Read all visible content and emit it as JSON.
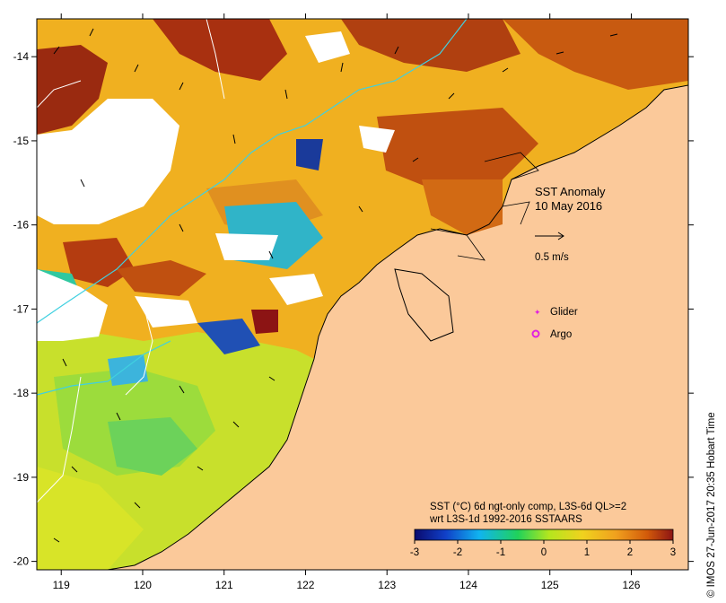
{
  "title": {
    "line1": "SST Anomaly",
    "line2": "10 May 2016"
  },
  "vector_scale": {
    "label": "0.5 m/s"
  },
  "legend": {
    "glider": "Glider",
    "argo": "Argo"
  },
  "colorbar": {
    "caption_line1": "SST (°C) 6d ngt-only comp, L3S-6d QL>=2",
    "caption_line2": "wrt L3S-1d 1992-2016 SSTAARS",
    "ticks": [
      "-3",
      "-2",
      "-1",
      "0",
      "1",
      "2",
      "3"
    ],
    "colors": [
      "#0a0a6e",
      "#1040c8",
      "#10b4f0",
      "#20d25a",
      "#b4e61e",
      "#f0d21e",
      "#f0a01e",
      "#d25a0a",
      "#8c1414"
    ]
  },
  "credit": "© IMOS 27-Jun-2017 20:35 Hobart Time",
  "axes": {
    "x_ticks": [
      "119",
      "120",
      "121",
      "122",
      "123",
      "124",
      "125",
      "126"
    ],
    "y_ticks": [
      "-14",
      "-15",
      "-16",
      "-17",
      "-18",
      "-19",
      "-20"
    ],
    "x_range": [
      118.7,
      126.7
    ],
    "y_range": [
      -20.1,
      -13.55
    ]
  },
  "colors": {
    "land": "#fbc99a",
    "no_data": "#ffffff",
    "contour": "#40d0e0"
  }
}
